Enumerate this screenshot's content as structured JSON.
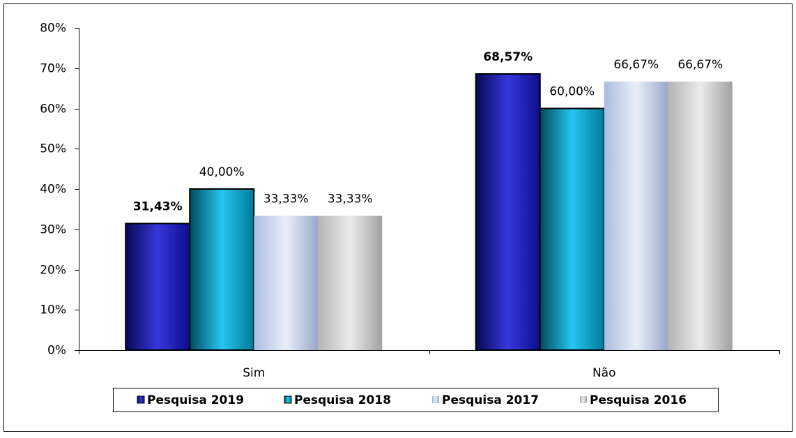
{
  "chart_data": {
    "type": "bar",
    "categories": [
      "Sim",
      "Não"
    ],
    "series": [
      {
        "name": "Pesquisa 2019",
        "color": "#1414d8",
        "values": [
          31.43,
          68.57
        ],
        "value_labels": [
          "31,43%",
          "68,57%"
        ]
      },
      {
        "name": "Pesquisa 2018",
        "color": "#00bcec",
        "values": [
          40,
          60
        ],
        "value_labels": [
          "40,00%",
          "60,00%"
        ]
      },
      {
        "name": "Pesquisa 2017",
        "color": "#b4c6ec",
        "values": [
          33.33,
          66.67
        ],
        "value_labels": [
          "33,33%",
          "66,67%"
        ]
      },
      {
        "name": "Pesquisa 2016",
        "color": "#bdbdbd",
        "values": [
          33.33,
          66.67
        ],
        "value_labels": [
          "33,33%",
          "66,67%"
        ]
      }
    ],
    "ylim": [
      0,
      80
    ],
    "yticks": [
      {
        "value": 0,
        "label": "0%"
      },
      {
        "value": 10,
        "label": "10%"
      },
      {
        "value": 20,
        "label": "20%"
      },
      {
        "value": 30,
        "label": "30%"
      },
      {
        "value": 40,
        "label": "40%"
      },
      {
        "value": 50,
        "label": "50%"
      },
      {
        "value": 60,
        "label": "60%"
      },
      {
        "value": 70,
        "label": "70%"
      },
      {
        "value": 80,
        "label": "80%"
      }
    ],
    "legend": "bottom"
  }
}
